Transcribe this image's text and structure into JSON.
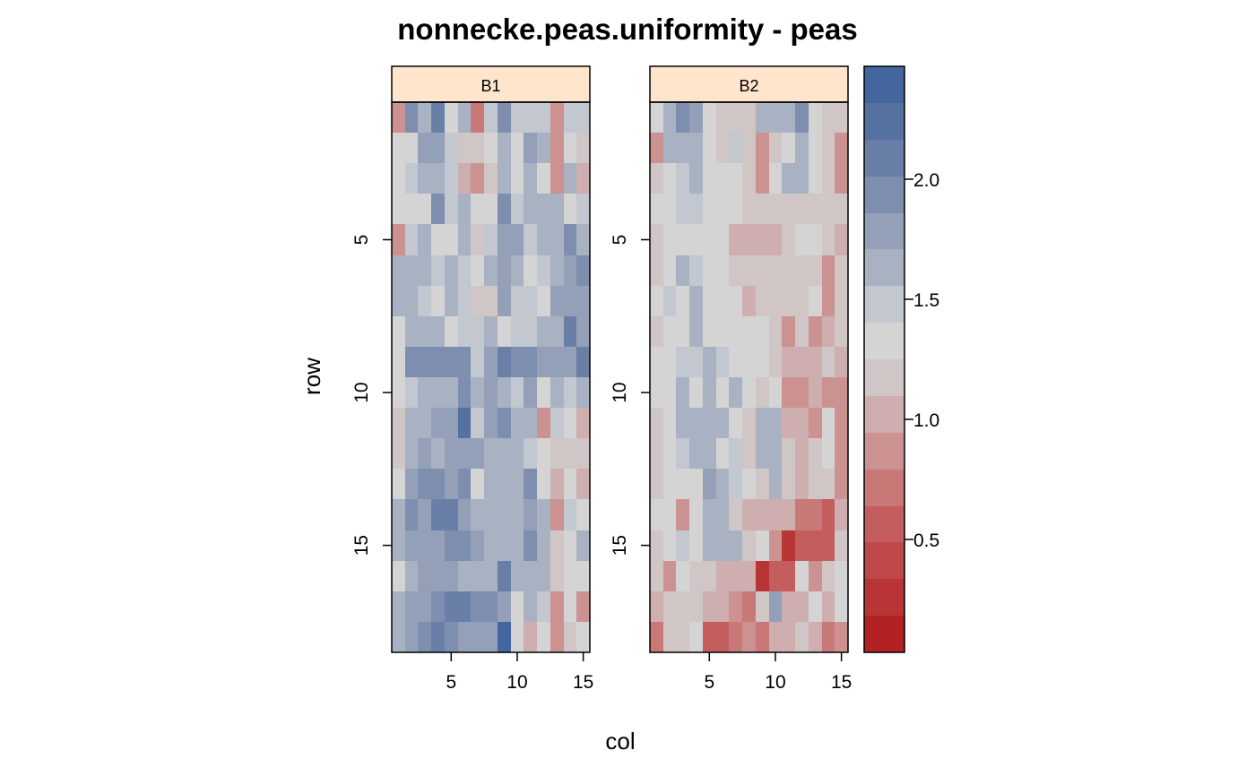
{
  "chart_data": {
    "type": "heatmap",
    "title": "nonnecke.peas.uniformity - peas",
    "xlabel": "col",
    "ylabel": "row",
    "x_ticks": [
      5,
      10,
      15
    ],
    "y_ticks": [
      5,
      10,
      15
    ],
    "xlim": [
      0.5,
      15.5
    ],
    "ylim": [
      18.5,
      0.5
    ],
    "colorbar": {
      "ticks": [
        0.5,
        1.0,
        1.5,
        2.0
      ],
      "tick_labels": [
        "0.5",
        "1.0",
        "1.5",
        "2.0"
      ],
      "range": [
        0.03,
        2.47
      ],
      "colors": [
        "#b22222",
        "#b93535",
        "#bf4848",
        "#c45e5e",
        "#c97878",
        "#cc9292",
        "#ceaeae",
        "#d0c6c6",
        "#d4d4d4",
        "#c2c7d0",
        "#a9b2c3",
        "#94a0b8",
        "#7d8eae",
        "#6a7fa7",
        "#5571a0",
        "#44669f"
      ]
    },
    "strip_color": "#ffe5cc",
    "panels": [
      {
        "name": "B1",
        "rows": 18,
        "cols": 15,
        "values": [
          [
            0.9,
            2.0,
            1.6,
            2.1,
            1.3,
            1.6,
            0.7,
            1.5,
            1.9,
            1.5,
            1.5,
            1.5,
            0.8,
            1.5,
            1.5
          ],
          [
            1.4,
            1.4,
            1.8,
            1.8,
            1.5,
            1.2,
            1.2,
            1.4,
            1.6,
            1.3,
            1.8,
            1.6,
            0.8,
            1.4,
            1.1
          ],
          [
            1.3,
            1.5,
            1.7,
            1.7,
            1.5,
            1.0,
            0.9,
            1.2,
            1.7,
            1.4,
            1.7,
            1.3,
            0.8,
            1.6,
            1.0
          ],
          [
            1.4,
            1.4,
            1.4,
            2.0,
            1.5,
            1.7,
            1.4,
            1.3,
            1.9,
            1.5,
            1.6,
            1.6,
            1.6,
            1.3,
            1.5
          ],
          [
            0.9,
            1.5,
            1.6,
            1.4,
            1.4,
            1.6,
            1.1,
            1.5,
            1.8,
            1.8,
            1.5,
            1.6,
            1.6,
            2.0,
            1.6
          ],
          [
            1.6,
            1.6,
            1.6,
            1.5,
            1.6,
            1.5,
            1.4,
            1.6,
            1.8,
            1.6,
            1.3,
            1.5,
            1.7,
            1.8,
            2.0
          ],
          [
            1.6,
            1.6,
            1.5,
            1.3,
            1.7,
            1.5,
            1.2,
            1.2,
            1.8,
            1.5,
            1.5,
            1.3,
            1.8,
            1.8,
            1.8
          ],
          [
            1.3,
            1.6,
            1.6,
            1.6,
            1.3,
            1.5,
            1.5,
            1.7,
            1.4,
            1.5,
            1.5,
            1.6,
            1.6,
            2.1,
            1.8
          ],
          [
            1.3,
            1.9,
            1.9,
            1.9,
            2.0,
            2.0,
            1.5,
            1.8,
            2.1,
            2.0,
            2.0,
            1.8,
            1.8,
            1.8,
            2.1
          ],
          [
            1.3,
            1.5,
            1.7,
            1.6,
            1.6,
            2.0,
            1.7,
            1.8,
            1.6,
            1.5,
            1.8,
            1.4,
            1.6,
            1.5,
            1.6
          ],
          [
            1.2,
            1.6,
            1.6,
            1.8,
            1.8,
            2.3,
            1.5,
            1.8,
            2.0,
            1.6,
            1.6,
            0.9,
            1.5,
            1.3,
            1.0
          ],
          [
            1.2,
            1.7,
            1.8,
            1.7,
            1.8,
            1.8,
            1.8,
            1.6,
            1.7,
            1.6,
            1.5,
            1.4,
            1.1,
            1.2,
            1.2
          ],
          [
            1.4,
            1.8,
            2.0,
            2.0,
            1.8,
            1.9,
            1.4,
            1.6,
            1.7,
            1.7,
            1.9,
            1.4,
            1.0,
            1.3,
            1.0
          ],
          [
            1.6,
            2.0,
            1.8,
            2.1,
            2.1,
            1.8,
            1.6,
            1.6,
            1.7,
            1.6,
            1.8,
            1.7,
            0.9,
            1.5,
            1.4
          ],
          [
            1.7,
            1.8,
            1.8,
            1.8,
            2.0,
            1.9,
            1.8,
            1.7,
            1.7,
            1.6,
            1.9,
            1.7,
            1.1,
            1.3,
            1.7
          ],
          [
            1.4,
            1.7,
            1.8,
            1.8,
            1.8,
            1.7,
            1.7,
            1.7,
            2.1,
            1.6,
            1.6,
            1.6,
            1.2,
            1.3,
            1.4
          ],
          [
            1.6,
            1.8,
            1.8,
            1.9,
            2.1,
            2.1,
            2.0,
            1.9,
            1.8,
            1.3,
            1.6,
            1.5,
            0.9,
            1.3,
            0.8
          ],
          [
            1.6,
            1.8,
            1.9,
            2.1,
            1.9,
            1.8,
            1.8,
            1.8,
            2.4,
            1.3,
            1.0,
            1.4,
            0.9,
            1.2,
            1.4
          ]
        ]
      },
      {
        "name": "B2",
        "rows": 18,
        "cols": 15,
        "values": [
          [
            1.4,
            1.6,
            2.0,
            1.8,
            1.4,
            1.2,
            1.1,
            1.1,
            1.6,
            1.6,
            1.6,
            2.0,
            1.4,
            1.1,
            1.1
          ],
          [
            0.9,
            1.6,
            1.6,
            1.6,
            1.4,
            1.2,
            1.5,
            1.2,
            0.9,
            1.2,
            1.4,
            1.6,
            1.4,
            1.1,
            0.9
          ],
          [
            1.2,
            1.4,
            1.5,
            1.6,
            1.4,
            1.4,
            1.3,
            1.2,
            0.9,
            1.4,
            1.6,
            1.6,
            1.4,
            1.2,
            0.9
          ],
          [
            1.3,
            1.3,
            1.5,
            1.5,
            1.3,
            1.4,
            1.3,
            1.2,
            1.2,
            1.2,
            1.2,
            1.2,
            1.2,
            1.2,
            1.2
          ],
          [
            1.2,
            1.3,
            1.3,
            1.4,
            1.4,
            1.4,
            1.0,
            1.0,
            1.0,
            1.0,
            1.2,
            1.4,
            1.4,
            1.2,
            1.0
          ],
          [
            1.2,
            1.4,
            1.6,
            1.5,
            1.4,
            1.4,
            1.1,
            1.2,
            1.1,
            1.1,
            1.1,
            1.1,
            1.1,
            0.8,
            1.1
          ],
          [
            1.3,
            1.5,
            1.4,
            1.6,
            1.4,
            1.4,
            1.4,
            1.0,
            1.2,
            1.1,
            1.1,
            1.1,
            1.3,
            0.9,
            1.1
          ],
          [
            1.2,
            1.3,
            1.4,
            1.6,
            1.4,
            1.4,
            1.4,
            1.3,
            1.4,
            1.2,
            0.8,
            1.1,
            0.8,
            1.0,
            1.2
          ],
          [
            1.4,
            1.4,
            1.5,
            1.5,
            1.7,
            1.5,
            1.4,
            1.4,
            1.4,
            1.2,
            1.0,
            1.0,
            1.0,
            1.2,
            1.0
          ],
          [
            1.4,
            1.3,
            1.6,
            1.4,
            1.6,
            1.4,
            1.6,
            1.4,
            1.2,
            1.4,
            0.8,
            0.8,
            1.0,
            0.8,
            0.8
          ],
          [
            1.2,
            1.4,
            1.7,
            1.6,
            1.6,
            1.6,
            1.4,
            1.2,
            1.6,
            1.6,
            1.0,
            1.0,
            0.8,
            1.4,
            0.9
          ],
          [
            1.1,
            1.3,
            1.5,
            1.6,
            1.6,
            1.4,
            1.5,
            1.2,
            1.6,
            1.6,
            1.2,
            1.0,
            1.1,
            1.4,
            0.9
          ],
          [
            1.2,
            1.3,
            1.4,
            1.4,
            1.8,
            1.6,
            1.5,
            1.4,
            1.2,
            1.6,
            1.2,
            1.0,
            1.2,
            1.1,
            0.8
          ],
          [
            1.4,
            1.3,
            0.8,
            1.3,
            1.6,
            1.6,
            1.2,
            1.0,
            1.0,
            1.0,
            1.0,
            0.7,
            0.7,
            0.6,
            1.0
          ],
          [
            1.2,
            1.3,
            1.5,
            1.3,
            1.7,
            1.7,
            1.7,
            1.2,
            1.4,
            0.9,
            0.3,
            0.6,
            0.6,
            0.6,
            1.1
          ],
          [
            1.2,
            0.8,
            1.4,
            1.2,
            1.2,
            1.0,
            1.0,
            1.0,
            0.3,
            0.6,
            0.6,
            1.4,
            0.8,
            1.2,
            1.4
          ],
          [
            1.0,
            1.2,
            1.1,
            1.1,
            1.0,
            1.0,
            0.8,
            0.7,
            1.1,
            1.8,
            1.0,
            1.0,
            1.4,
            1.0,
            1.4
          ],
          [
            0.7,
            1.1,
            1.1,
            1.4,
            0.6,
            0.6,
            0.7,
            0.8,
            0.7,
            1.0,
            1.0,
            1.2,
            1.0,
            0.7,
            0.8
          ]
        ]
      }
    ]
  }
}
